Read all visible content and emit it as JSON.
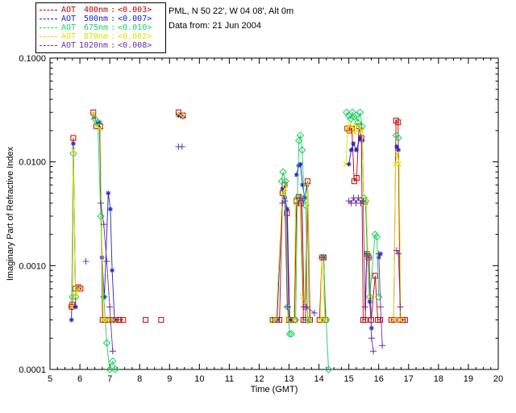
{
  "header": {
    "line1": "PML, N 50 22', W 04 08', Alt 0m",
    "line2": "Data from: 21 Jun 2004"
  },
  "legend": {
    "sep": ":",
    "items": [
      {
        "name": "AOT",
        "wavelength": "400nm",
        "value": "<0.003>",
        "color": "#c00000",
        "marker": "square"
      },
      {
        "name": "AOT",
        "wavelength": "500nm",
        "value": "<0.007>",
        "color": "#2020cc",
        "marker": "asterisk"
      },
      {
        "name": "AOT",
        "wavelength": "675nm",
        "value": "<0.010>",
        "color": "#1fd05f",
        "marker": "diamond"
      },
      {
        "name": "AOT",
        "wavelength": "870nm",
        "value": "<0.002>",
        "color": "#e0e000",
        "marker": "cross"
      },
      {
        "name": "AOT",
        "wavelength": "1020nm",
        "value": "<0.008>",
        "color": "#7030a0",
        "marker": "plus"
      }
    ]
  },
  "chart_data": {
    "type": "line",
    "title": "",
    "xlabel": "Time (GMT)",
    "ylabel": "Imaginary Part of Refractive Index",
    "xlim": [
      5,
      20
    ],
    "ylim": [
      0.0001,
      0.1
    ],
    "yscale": "log",
    "grid": false,
    "legend_position": "top-left",
    "xticks": [
      5,
      6,
      7,
      8,
      9,
      10,
      11,
      12,
      13,
      14,
      15,
      16,
      17,
      18,
      19,
      20
    ],
    "yticks": [
      {
        "v": 0.1,
        "label": "0.1000"
      },
      {
        "v": 0.01,
        "label": "0.0100"
      },
      {
        "v": 0.001,
        "label": "0.0010"
      },
      {
        "v": 0.0001,
        "label": "0.0001"
      }
    ],
    "series": [
      {
        "name": "AOT 400nm",
        "color": "#c00000",
        "marker": "square",
        "segments": [
          [
            [
              5.72,
              0.0004
            ],
            [
              5.75,
              0.00042
            ],
            [
              5.78,
              0.017
            ],
            [
              5.85,
              0.0006
            ],
            [
              5.95,
              0.00062
            ],
            [
              6.02,
              0.0006
            ]
          ],
          [
            [
              6.45,
              0.03
            ],
            [
              6.55,
              0.022
            ],
            [
              6.68,
              0.022
            ],
            [
              6.76,
              0.0003
            ],
            [
              6.84,
              0.0003
            ],
            [
              6.92,
              0.0003
            ],
            [
              7.0,
              0.0003
            ],
            [
              7.1,
              0.0003
            ],
            [
              7.2,
              0.0003
            ],
            [
              7.32,
              0.0003
            ],
            [
              7.45,
              0.0003
            ]
          ],
          [
            [
              8.2,
              0.0003
            ]
          ],
          [
            [
              8.72,
              0.0003
            ]
          ],
          [
            [
              9.3,
              0.03
            ],
            [
              9.45,
              0.028
            ]
          ],
          [
            [
              12.45,
              0.0003
            ],
            [
              12.52,
              0.0003
            ],
            [
              12.6,
              0.0003
            ],
            [
              12.68,
              0.0003
            ],
            [
              12.78,
              0.005
            ],
            [
              12.85,
              0.006
            ],
            [
              12.93,
              0.0032
            ],
            [
              13.0,
              0.0003
            ],
            [
              13.05,
              0.0003
            ]
          ],
          [
            [
              13.18,
              0.0003
            ],
            [
              13.25,
              0.0042
            ],
            [
              13.32,
              0.0046
            ],
            [
              13.4,
              0.004
            ],
            [
              13.48,
              0.0003
            ],
            [
              13.55,
              0.0003
            ],
            [
              13.62,
              0.0065
            ],
            [
              13.7,
              0.0003
            ]
          ],
          [
            [
              14.02,
              0.0003
            ],
            [
              14.1,
              0.0012
            ],
            [
              14.16,
              0.0012
            ],
            [
              14.22,
              0.0003
            ]
          ],
          [
            [
              14.95,
              0.021
            ],
            [
              15.02,
              0.02
            ],
            [
              15.1,
              0.021
            ],
            [
              15.18,
              0.0065
            ],
            [
              15.26,
              0.007
            ],
            [
              15.34,
              0.022
            ],
            [
              15.42,
              0.017
            ],
            [
              15.48,
              0.0003
            ],
            [
              15.55,
              0.0003
            ],
            [
              15.6,
              0.0013
            ],
            [
              15.66,
              0.0012
            ],
            [
              15.75,
              0.0003
            ],
            [
              15.88,
              0.0008
            ],
            [
              15.97,
              0.0003
            ],
            [
              16.05,
              0.0003
            ]
          ],
          [
            [
              16.42,
              0.0003
            ],
            [
              16.5,
              0.0003
            ],
            [
              16.58,
              0.025
            ],
            [
              16.65,
              0.024
            ],
            [
              16.72,
              0.0003
            ],
            [
              16.8,
              0.0003
            ],
            [
              16.88,
              0.0003
            ]
          ]
        ]
      },
      {
        "name": "AOT 500nm",
        "color": "#2020cc",
        "marker": "asterisk",
        "segments": [
          [
            [
              5.72,
              0.0003
            ],
            [
              5.78,
              0.015
            ],
            [
              5.86,
              0.0004
            ]
          ],
          [
            [
              6.48,
              0.027
            ],
            [
              6.58,
              0.023
            ],
            [
              6.66,
              0.024
            ],
            [
              6.74,
              0.0012
            ],
            [
              6.82,
              0.0005
            ],
            [
              6.95,
              0.005
            ],
            [
              7.02,
              0.0035
            ],
            [
              7.08,
              0.0009
            ],
            [
              7.16,
              0.0003
            ]
          ],
          [
            [
              9.3,
              0.028
            ],
            [
              9.45,
              0.027
            ]
          ],
          [
            [
              12.5,
              0.0003
            ],
            [
              12.6,
              0.0003
            ],
            [
              12.78,
              0.0055
            ],
            [
              12.86,
              0.0045
            ],
            [
              12.94,
              0.0035
            ],
            [
              13.02,
              0.0003
            ]
          ],
          [
            [
              13.25,
              0.0075
            ],
            [
              13.32,
              0.0092
            ],
            [
              13.38,
              0.0095
            ],
            [
              13.45,
              0.006
            ],
            [
              13.52,
              0.0045
            ],
            [
              13.6,
              0.006
            ],
            [
              13.68,
              0.0003
            ]
          ],
          [
            [
              15.0,
              0.0095
            ],
            [
              15.08,
              0.013
            ],
            [
              15.15,
              0.015
            ],
            [
              15.25,
              0.013
            ],
            [
              15.38,
              0.017
            ],
            [
              15.45,
              0.016
            ],
            [
              15.5,
              0.0042
            ],
            [
              15.56,
              0.004
            ],
            [
              15.62,
              0.0013
            ],
            [
              15.7,
              0.00045
            ],
            [
              15.76,
              0.00025
            ]
          ],
          [
            [
              16.0,
              0.0012
            ],
            [
              16.06,
              0.0013
            ]
          ],
          [
            [
              16.6,
              0.014
            ],
            [
              16.66,
              0.013
            ]
          ]
        ]
      },
      {
        "name": "AOT 675nm",
        "color": "#1fd05f",
        "marker": "diamond",
        "segments": [
          [
            [
              5.75,
              0.0005
            ],
            [
              5.78,
              0.012
            ],
            [
              5.86,
              0.0005
            ]
          ],
          [
            [
              6.5,
              0.026
            ],
            [
              6.6,
              0.024
            ],
            [
              6.7,
              0.003
            ],
            [
              6.8,
              0.0005
            ],
            [
              6.9,
              0.00018
            ],
            [
              7.0,
              0.0001
            ],
            [
              7.1,
              0.00012
            ],
            [
              7.18,
              0.0001
            ]
          ],
          [
            [
              12.75,
              0.0065
            ],
            [
              12.8,
              0.008
            ],
            [
              12.88,
              0.0065
            ],
            [
              12.95,
              0.0004
            ],
            [
              13.02,
              0.00022
            ],
            [
              13.08,
              0.00022
            ]
          ],
          [
            [
              13.22,
              0.0003
            ],
            [
              13.28,
              0.0045
            ],
            [
              13.33,
              0.016
            ],
            [
              13.38,
              0.018
            ],
            [
              13.44,
              0.013
            ],
            [
              13.5,
              0.0045
            ],
            [
              13.56,
              0.0038
            ],
            [
              13.62,
              0.0003
            ]
          ],
          [
            [
              14.15,
              0.0012
            ],
            [
              14.24,
              0.0003
            ],
            [
              14.32,
              0.0001
            ]
          ],
          [
            [
              14.92,
              0.03
            ],
            [
              15.0,
              0.028
            ],
            [
              15.06,
              0.026
            ],
            [
              15.12,
              0.03
            ],
            [
              15.18,
              0.027
            ],
            [
              15.24,
              0.028
            ],
            [
              15.3,
              0.024
            ],
            [
              15.38,
              0.03
            ],
            [
              15.44,
              0.022
            ],
            [
              15.5,
              0.0045
            ],
            [
              15.56,
              0.0042
            ],
            [
              15.62,
              0.0013
            ],
            [
              15.7,
              0.0005
            ],
            [
              15.88,
              0.002
            ],
            [
              15.94,
              0.0019
            ],
            [
              16.0,
              0.0005
            ]
          ],
          [
            [
              16.58,
              0.018
            ],
            [
              16.66,
              0.017
            ]
          ]
        ]
      },
      {
        "name": "AOT 870nm",
        "color": "#e0e000",
        "marker": "cross",
        "segments": [
          [
            [
              5.73,
              0.0004
            ],
            [
              5.78,
              0.013
            ],
            [
              5.86,
              0.0005
            ],
            [
              5.96,
              0.0006
            ]
          ],
          [
            [
              6.45,
              0.029
            ],
            [
              6.56,
              0.022
            ],
            [
              6.68,
              0.021
            ],
            [
              6.78,
              0.0003
            ],
            [
              6.9,
              0.0003
            ],
            [
              7.02,
              0.0003
            ],
            [
              7.12,
              0.0003
            ]
          ],
          [
            [
              9.3,
              0.029
            ],
            [
              9.45,
              0.027
            ]
          ],
          [
            [
              12.46,
              0.0003
            ],
            [
              12.56,
              0.0003
            ],
            [
              12.78,
              0.005
            ],
            [
              12.86,
              0.0055
            ],
            [
              12.95,
              0.0003
            ]
          ],
          [
            [
              13.16,
              0.0003
            ],
            [
              13.22,
              0.004
            ],
            [
              13.28,
              0.0042
            ],
            [
              13.36,
              0.0045
            ],
            [
              13.45,
              0.0005
            ],
            [
              13.52,
              0.00045
            ],
            [
              13.62,
              0.0062
            ],
            [
              13.68,
              0.0003
            ]
          ],
          [
            [
              14.04,
              0.0003
            ],
            [
              14.1,
              0.0012
            ],
            [
              14.2,
              0.0003
            ]
          ],
          [
            [
              14.9,
              0.0095
            ],
            [
              14.96,
              0.021
            ],
            [
              15.04,
              0.023
            ],
            [
              15.12,
              0.022
            ],
            [
              15.2,
              0.019
            ],
            [
              15.28,
              0.022
            ],
            [
              15.36,
              0.021
            ],
            [
              15.44,
              0.02
            ],
            [
              15.5,
              0.004
            ],
            [
              15.58,
              0.0042
            ],
            [
              15.64,
              0.0013
            ],
            [
              15.72,
              0.0005
            ]
          ],
          [
            [
              16.5,
              0.0003
            ],
            [
              16.56,
              0.0095
            ],
            [
              16.62,
              0.012
            ],
            [
              16.68,
              0.0095
            ],
            [
              16.74,
              0.0003
            ]
          ]
        ]
      },
      {
        "name": "AOT 1020nm",
        "color": "#7030a0",
        "marker": "plus",
        "segments": [
          [
            [
              6.2,
              0.0011
            ]
          ],
          [
            [
              6.7,
              0.004
            ],
            [
              6.8,
              0.0025
            ],
            [
              6.9,
              0.0011
            ],
            [
              7.0,
              0.0004
            ],
            [
              7.1,
              0.00015
            ]
          ],
          [
            [
              9.3,
              0.014
            ],
            [
              9.42,
              0.014
            ]
          ],
          [
            [
              12.78,
              0.004
            ],
            [
              12.86,
              0.0042
            ],
            [
              12.94,
              0.0004
            ]
          ],
          [
            [
              13.3,
              0.004
            ],
            [
              13.37,
              0.0045
            ],
            [
              13.44,
              0.0042
            ],
            [
              13.5,
              0.0004
            ],
            [
              13.58,
              0.0004
            ],
            [
              13.85,
              0.00035
            ]
          ],
          [
            [
              14.1,
              0.0012
            ],
            [
              14.16,
              0.0012
            ]
          ],
          [
            [
              15.0,
              0.0042
            ],
            [
              15.08,
              0.004
            ],
            [
              15.16,
              0.0045
            ],
            [
              15.24,
              0.004
            ],
            [
              15.32,
              0.0045
            ],
            [
              15.4,
              0.004
            ],
            [
              15.48,
              0.0042
            ],
            [
              15.54,
              0.0004
            ],
            [
              15.6,
              0.0013
            ],
            [
              15.68,
              0.0012
            ],
            [
              15.76,
              0.0002
            ],
            [
              15.82,
              0.00015
            ]
          ],
          [
            [
              16.0,
              0.0013
            ],
            [
              16.06,
              0.0004
            ],
            [
              16.12,
              0.00017
            ]
          ],
          [
            [
              16.6,
              0.0014
            ],
            [
              16.66,
              0.0013
            ],
            [
              16.72,
              0.0004
            ]
          ]
        ]
      }
    ]
  }
}
